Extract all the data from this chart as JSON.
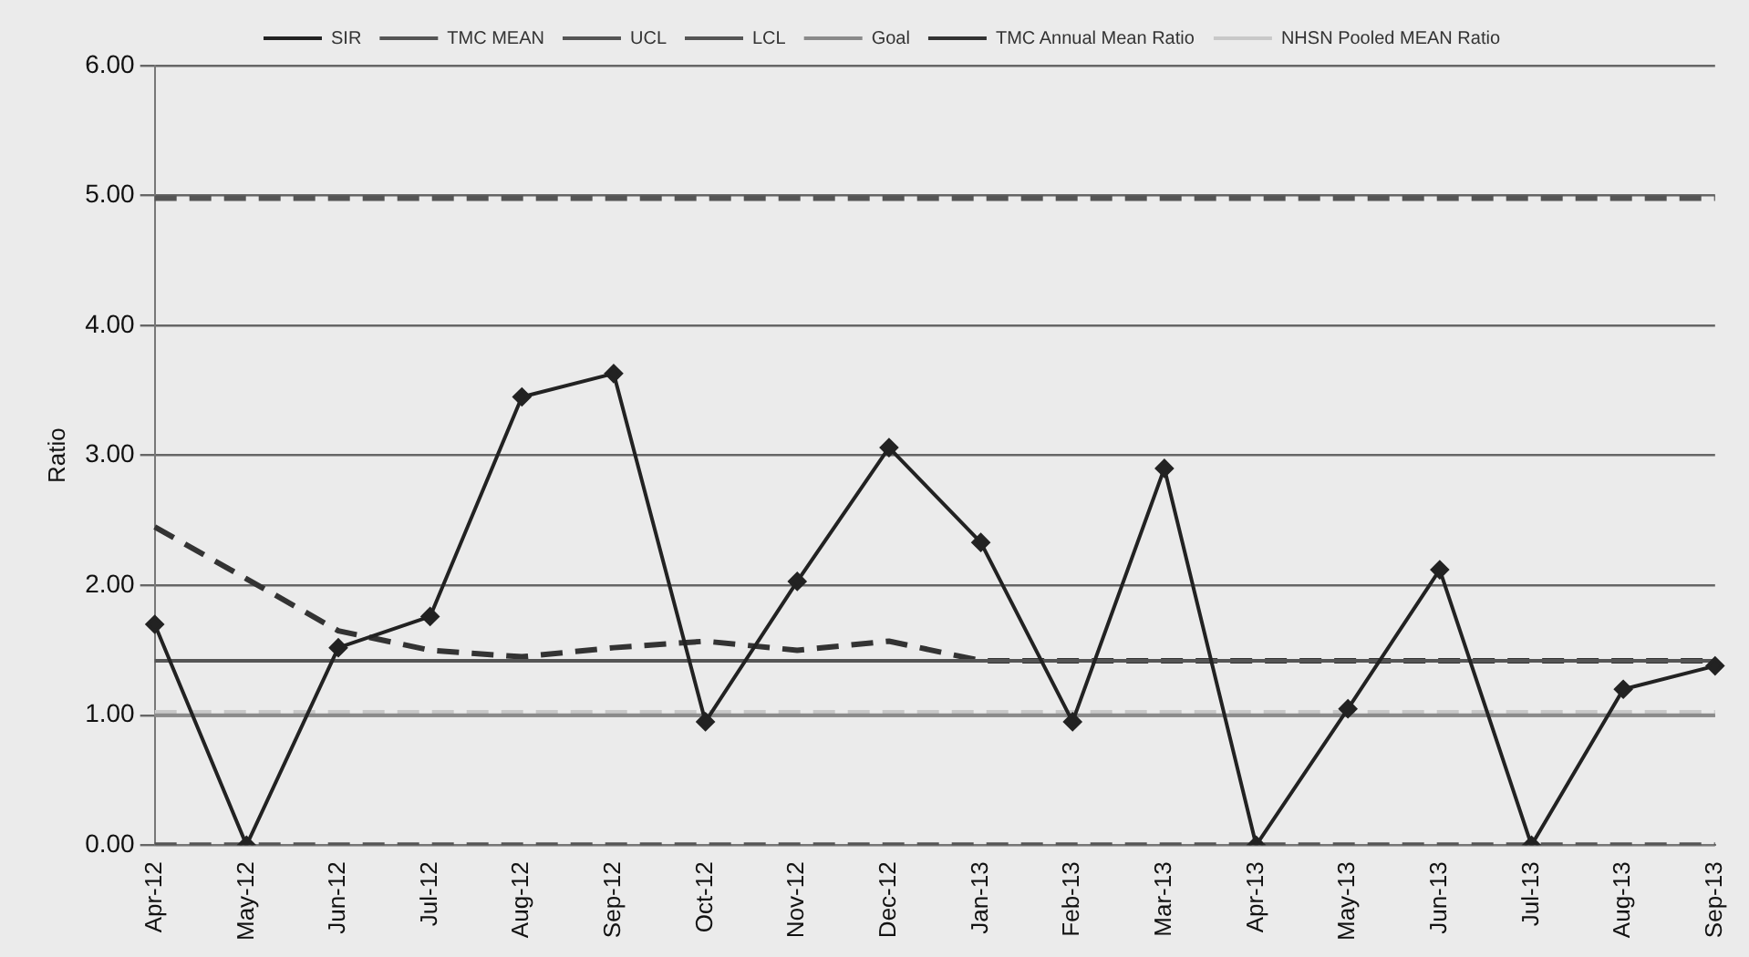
{
  "chart_data": {
    "type": "line",
    "ylabel": "Ratio",
    "categories": [
      "Apr-12",
      "May-12",
      "Jun-12",
      "Jul-12",
      "Aug-12",
      "Sep-12",
      "Oct-12",
      "Nov-12",
      "Dec-12",
      "Jan-13",
      "Feb-13",
      "Mar-13",
      "Apr-13",
      "May-13",
      "Jun-13",
      "Jul-13",
      "Aug-13",
      "Sep-13"
    ],
    "series": [
      {
        "name": "SIR",
        "color": "#222222",
        "marker": "diamond",
        "line_style": "solid",
        "values": [
          1.7,
          0,
          1.52,
          1.76,
          3.45,
          3.63,
          0.95,
          2.03,
          3.06,
          2.33,
          0.95,
          2.9,
          0,
          1.05,
          2.12,
          0,
          1.2,
          1.38
        ]
      },
      {
        "name": "TMC MEAN",
        "color": "#555555",
        "line_style": "solid",
        "values": [
          1.42,
          1.42,
          1.42,
          1.42,
          1.42,
          1.42,
          1.42,
          1.42,
          1.42,
          1.42,
          1.42,
          1.42,
          1.42,
          1.42,
          1.42,
          1.42,
          1.42,
          1.42
        ]
      },
      {
        "name": "UCL",
        "color": "#555555",
        "line_style": "dashed",
        "values": [
          4.98,
          4.98,
          4.98,
          4.98,
          4.98,
          4.98,
          4.98,
          4.98,
          4.98,
          4.98,
          4.98,
          4.98,
          4.98,
          4.98,
          4.98,
          4.98,
          4.98,
          4.98
        ]
      },
      {
        "name": "LCL",
        "color": "#555555",
        "line_style": "dashed",
        "values": [
          0,
          0,
          0,
          0,
          0,
          0,
          0,
          0,
          0,
          0,
          0,
          0,
          0,
          0,
          0,
          0,
          0,
          0
        ]
      },
      {
        "name": "Goal",
        "color": "#8a8a8a",
        "line_style": "solid",
        "values": [
          1.0,
          1.0,
          1.0,
          1.0,
          1.0,
          1.0,
          1.0,
          1.0,
          1.0,
          1.0,
          1.0,
          1.0,
          1.0,
          1.0,
          1.0,
          1.0,
          1.0,
          1.0
        ]
      },
      {
        "name": "TMC Annual Mean Ratio",
        "color": "#333333",
        "line_style": "dashed",
        "values": [
          2.45,
          2.05,
          1.65,
          1.5,
          1.45,
          1.52,
          1.57,
          1.5,
          1.57,
          1.42,
          1.42,
          1.42,
          1.42,
          1.42,
          1.42,
          1.42,
          1.42,
          1.42
        ]
      },
      {
        "name": "NHSN Pooled MEAN Ratio",
        "color": "#c8c8c8",
        "line_style": "dashed",
        "values": [
          1.02,
          1.02,
          1.02,
          1.02,
          1.02,
          1.02,
          1.02,
          1.02,
          1.02,
          1.02,
          1.02,
          1.02,
          1.02,
          1.02,
          1.02,
          1.02,
          1.02,
          1.02
        ]
      }
    ],
    "ylim": [
      0,
      6
    ],
    "yticks": [
      {
        "value": 0,
        "label": "0.00"
      },
      {
        "value": 1,
        "label": "1.00"
      },
      {
        "value": 2,
        "label": "2.00"
      },
      {
        "value": 3,
        "label": "3.00"
      },
      {
        "value": 4,
        "label": "4.00"
      },
      {
        "value": 5,
        "label": "5.00"
      },
      {
        "value": 6,
        "label": "6.00"
      }
    ],
    "grid": "y",
    "legend": "top"
  }
}
